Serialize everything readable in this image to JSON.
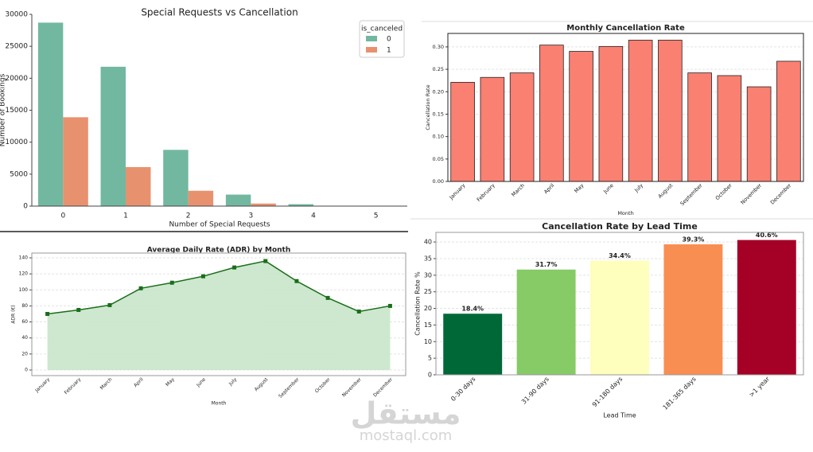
{
  "chart_data": [
    {
      "type": "bar",
      "title": "Special Requests vs Cancellation",
      "x_label": "Number of Special Requests",
      "y_label": "Number of Bookings",
      "categories": [
        "0",
        "1",
        "2",
        "3",
        "4",
        "5"
      ],
      "series": [
        {
          "name": "0",
          "color": "#72b8a0",
          "values": [
            28700,
            21800,
            8800,
            1800,
            300,
            40
          ]
        },
        {
          "name": "1",
          "color": "#e8916f",
          "values": [
            13900,
            6100,
            2400,
            400,
            50,
            10
          ]
        }
      ],
      "legend_title": "is_canceled",
      "legend": "upper right",
      "ylim": [
        0,
        30000
      ],
      "yticks": [
        0,
        5000,
        10000,
        15000,
        20000,
        25000,
        30000
      ],
      "grid": false
    },
    {
      "type": "bar",
      "title": "Monthly Cancellation Rate",
      "x_label": "Month",
      "y_label": "Cancellation Rate",
      "categories": [
        "January",
        "February",
        "March",
        "April",
        "May",
        "June",
        "July",
        "August",
        "September",
        "October",
        "November",
        "December"
      ],
      "values": [
        0.221,
        0.232,
        0.242,
        0.304,
        0.29,
        0.301,
        0.315,
        0.315,
        0.242,
        0.236,
        0.211,
        0.268
      ],
      "color": "#fa8072",
      "ylim": [
        0,
        0.33
      ],
      "yticks": [
        {
          "value": 0,
          "label": "0.00"
        },
        {
          "value": 0.05,
          "label": "0.05"
        },
        {
          "value": 0.1,
          "label": "0.10"
        },
        {
          "value": 0.15,
          "label": "0.15"
        },
        {
          "value": 0.2,
          "label": "0.20"
        },
        {
          "value": 0.25,
          "label": "0.25"
        },
        {
          "value": 0.3,
          "label": "0.30"
        }
      ],
      "grid": true
    },
    {
      "type": "line",
      "title": "Average Daily Rate (ADR) by Month",
      "x_label": "Month",
      "y_label": "ADR (€)",
      "categories": [
        "January",
        "February",
        "March",
        "April",
        "May",
        "June",
        "July",
        "August",
        "September",
        "October",
        "November",
        "December"
      ],
      "values": [
        70,
        75,
        81,
        102,
        109,
        117,
        128,
        136,
        111,
        90,
        73,
        80
      ],
      "color": "#1a6e1a",
      "fill": "#c8e6c9",
      "ylim": [
        -7,
        146
      ],
      "yticks": [
        0,
        20,
        40,
        60,
        80,
        100,
        120,
        140
      ],
      "grid": true
    },
    {
      "type": "bar",
      "title": "Cancellation Rate by Lead Time",
      "x_label": "Lead Time",
      "y_label": "Cancellation Rate %",
      "categories": [
        "0-30 days",
        "31-90 days",
        "91-180 days",
        "181-365 days",
        ">1 year"
      ],
      "values": [
        18.4,
        31.7,
        34.4,
        39.3,
        40.6
      ],
      "value_labels": [
        "18.4%",
        "31.7%",
        "34.4%",
        "39.3%",
        "40.6%"
      ],
      "colors": [
        "#006837",
        "#86cb66",
        "#fefebd",
        "#f98e52",
        "#a50026"
      ],
      "ylim": [
        0,
        42.9
      ],
      "yticks": [
        0,
        5,
        10,
        15,
        20,
        25,
        30,
        35,
        40
      ],
      "grid": true
    }
  ],
  "watermark": {
    "arabic": "مستقل",
    "latin": "mostaql.com"
  }
}
